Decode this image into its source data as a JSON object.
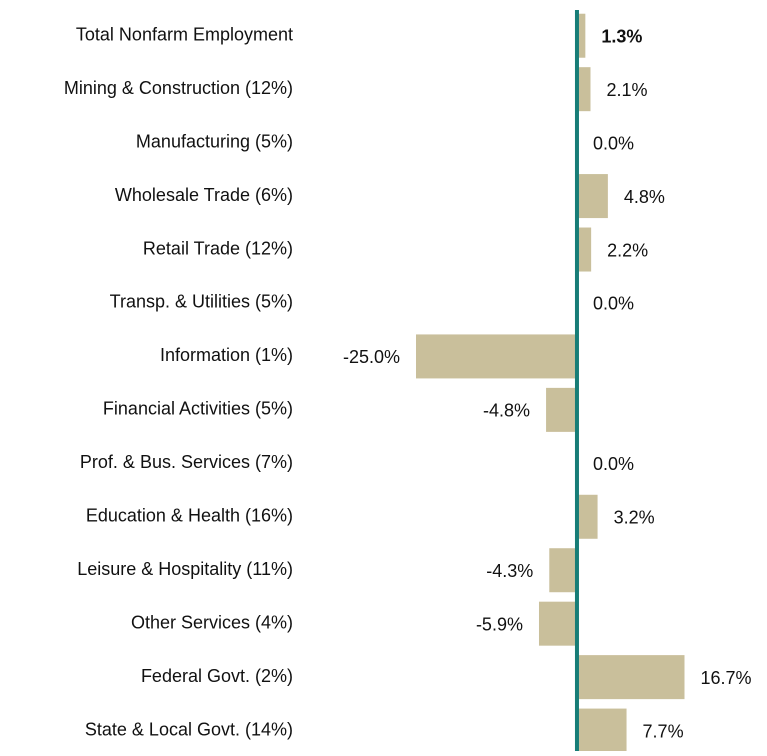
{
  "chart_data": {
    "type": "bar",
    "orientation": "horizontal",
    "categories": [
      "Total Nonfarm Employment",
      "Mining & Construction (12%)",
      "Manufacturing (5%)",
      "Wholesale Trade (6%)",
      "Retail Trade (12%)",
      "Transp. & Utilities (5%)",
      "Information (1%)",
      "Financial Activities (5%)",
      "Prof. & Bus. Services (7%)",
      "Education & Health (16%)",
      "Leisure & Hospitality (11%)",
      "Other Services (4%)",
      "Federal Govt. (2%)",
      "State & Local Govt. (14%)"
    ],
    "values": [
      1.3,
      2.1,
      0,
      4.8,
      2.2,
      0,
      -25,
      -4.8,
      0,
      3.2,
      -4.3,
      -5.9,
      16.7,
      7.7
    ],
    "value_labels": [
      "1.3%",
      "2.1%",
      "0.0%",
      "4.8%",
      "2.2%",
      "0.0%",
      "-25.0%",
      "-4.8%",
      "0.0%",
      "3.2%",
      "-4.3%",
      "-5.9%",
      "16.7%",
      "7.7%"
    ],
    "color": "#c9bf9b",
    "zero_line_color": "#177d77",
    "xlim": [
      -25,
      16.7
    ]
  }
}
